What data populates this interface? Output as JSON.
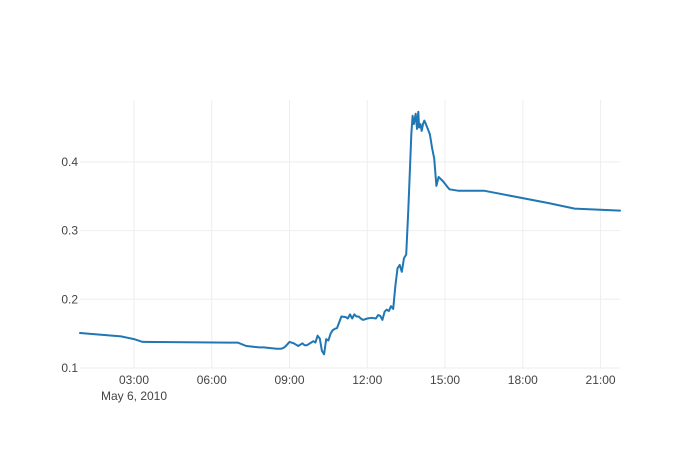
{
  "chart_data": {
    "type": "line",
    "title": "",
    "xlabel": "",
    "ylabel": "",
    "x_axis": {
      "type": "date",
      "range": [
        "2010-05-06T00:55:00",
        "2010-05-06T21:45:00"
      ],
      "ticks": [
        {
          "t": "2010-05-06T03:00:00",
          "label": "03:00",
          "sublabel": "May 6, 2010"
        },
        {
          "t": "2010-05-06T06:00:00",
          "label": "06:00",
          "sublabel": ""
        },
        {
          "t": "2010-05-06T09:00:00",
          "label": "09:00",
          "sublabel": ""
        },
        {
          "t": "2010-05-06T12:00:00",
          "label": "12:00",
          "sublabel": ""
        },
        {
          "t": "2010-05-06T15:00:00",
          "label": "15:00",
          "sublabel": ""
        },
        {
          "t": "2010-05-06T18:00:00",
          "label": "18:00",
          "sublabel": ""
        },
        {
          "t": "2010-05-06T21:00:00",
          "label": "21:00",
          "sublabel": ""
        }
      ]
    },
    "y_axis": {
      "range": [
        0.1,
        0.49
      ],
      "ticks": [
        {
          "v": 0.1,
          "label": "0.1"
        },
        {
          "v": 0.2,
          "label": "0.2"
        },
        {
          "v": 0.3,
          "label": "0.3"
        },
        {
          "v": 0.4,
          "label": "0.4"
        }
      ]
    },
    "grid": true,
    "line_color": "#1f77b4",
    "series": [
      {
        "x": [
          "2010-05-06T00:55:00",
          "2010-05-06T02:30:00",
          "2010-05-06T03:00:00",
          "2010-05-06T03:20:00",
          "2010-05-06T06:40:00",
          "2010-05-06T07:00:00",
          "2010-05-06T07:20:00",
          "2010-05-06T07:50:00",
          "2010-05-06T08:00:00",
          "2010-05-06T08:30:00",
          "2010-05-06T08:40:00",
          "2010-05-06T08:45:00",
          "2010-05-06T08:50:00",
          "2010-05-06T09:00:00",
          "2010-05-06T09:10:00",
          "2010-05-06T09:20:00",
          "2010-05-06T09:30:00",
          "2010-05-06T09:35:00",
          "2010-05-06T09:40:00",
          "2010-05-06T09:50:00",
          "2010-05-06T09:55:00",
          "2010-05-06T10:00:00",
          "2010-05-06T10:05:00",
          "2010-05-06T10:10:00",
          "2010-05-06T10:15:00",
          "2010-05-06T10:20:00",
          "2010-05-06T10:25:00",
          "2010-05-06T10:30:00",
          "2010-05-06T10:35:00",
          "2010-05-06T10:40:00",
          "2010-05-06T10:45:00",
          "2010-05-06T10:50:00",
          "2010-05-06T11:00:00",
          "2010-05-06T11:10:00",
          "2010-05-06T11:15:00",
          "2010-05-06T11:20:00",
          "2010-05-06T11:25:00",
          "2010-05-06T11:30:00",
          "2010-05-06T11:35:00",
          "2010-05-06T11:40:00",
          "2010-05-06T11:45:00",
          "2010-05-06T11:50:00",
          "2010-05-06T12:00:00",
          "2010-05-06T12:10:00",
          "2010-05-06T12:20:00",
          "2010-05-06T12:25:00",
          "2010-05-06T12:30:00",
          "2010-05-06T12:35:00",
          "2010-05-06T12:40:00",
          "2010-05-06T12:45:00",
          "2010-05-06T12:50:00",
          "2010-05-06T12:55:00",
          "2010-05-06T13:00:00",
          "2010-05-06T13:05:00",
          "2010-05-06T13:10:00",
          "2010-05-06T13:15:00",
          "2010-05-06T13:20:00",
          "2010-05-06T13:25:00",
          "2010-05-06T13:30:00",
          "2010-05-06T13:35:00",
          "2010-05-06T13:40:00",
          "2010-05-06T13:42:00",
          "2010-05-06T13:45:00",
          "2010-05-06T13:48:00",
          "2010-05-06T13:52:00",
          "2010-05-06T13:55:00",
          "2010-05-06T13:58:00",
          "2010-05-06T14:00:00",
          "2010-05-06T14:03:00",
          "2010-05-06T14:06:00",
          "2010-05-06T14:09:00",
          "2010-05-06T14:12:00",
          "2010-05-06T14:15:00",
          "2010-05-06T14:20:00",
          "2010-05-06T14:25:00",
          "2010-05-06T14:30:00",
          "2010-05-06T14:35:00",
          "2010-05-06T14:40:00",
          "2010-05-06T14:45:00",
          "2010-05-06T14:50:00",
          "2010-05-06T14:55:00",
          "2010-05-06T15:00:00",
          "2010-05-06T15:05:00",
          "2010-05-06T15:10:00",
          "2010-05-06T15:30:00",
          "2010-05-06T16:30:00",
          "2010-05-06T19:00:00",
          "2010-05-06T20:00:00",
          "2010-05-06T21:45:00"
        ],
        "y": [
          0.151,
          0.146,
          0.142,
          0.138,
          0.137,
          0.137,
          0.132,
          0.13,
          0.13,
          0.128,
          0.128,
          0.129,
          0.131,
          0.138,
          0.136,
          0.132,
          0.136,
          0.133,
          0.133,
          0.137,
          0.139,
          0.137,
          0.147,
          0.143,
          0.125,
          0.12,
          0.142,
          0.14,
          0.15,
          0.155,
          0.157,
          0.158,
          0.175,
          0.174,
          0.172,
          0.178,
          0.172,
          0.178,
          0.175,
          0.175,
          0.172,
          0.17,
          0.172,
          0.173,
          0.172,
          0.177,
          0.176,
          0.17,
          0.182,
          0.185,
          0.183,
          0.19,
          0.186,
          0.22,
          0.245,
          0.25,
          0.24,
          0.26,
          0.265,
          0.33,
          0.41,
          0.44,
          0.467,
          0.455,
          0.47,
          0.448,
          0.473,
          0.45,
          0.455,
          0.445,
          0.455,
          0.46,
          0.456,
          0.448,
          0.44,
          0.42,
          0.405,
          0.365,
          0.378,
          0.375,
          0.372,
          0.368,
          0.364,
          0.36,
          0.358,
          0.358,
          0.34,
          0.332,
          0.329
        ]
      }
    ]
  }
}
